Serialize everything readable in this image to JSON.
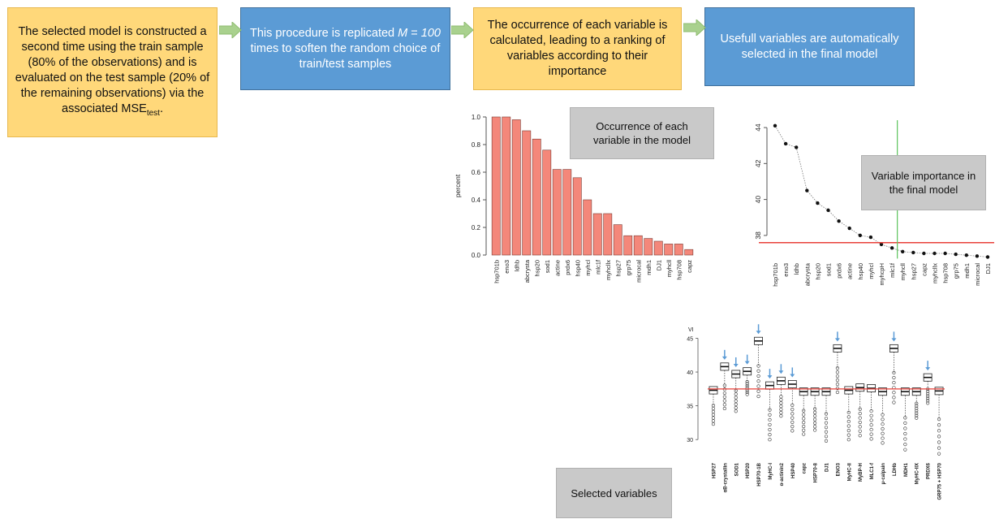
{
  "steps": [
    {
      "text": "The selected model is constructed a second time using the train sample (80% of the observations) and is evaluated on the test sample (20% of the remaining observations) via the associated",
      "mse": "MSE",
      "mse_sub": "test",
      "mse_end": "."
    },
    {
      "pre": "This procedure is replicated ",
      "m": "M",
      "eq": " = ",
      "n": "100",
      "post": "  times to soften the random choice of train/test samples"
    },
    {
      "text": "The occurrence of each variable is calculated, leading to a ranking of variables according to their importance"
    },
    {
      "text": "Usefull variables are automatically selected in the final model"
    }
  ],
  "colors": {
    "yellow": "#ffd87a",
    "blue": "#5b9bd5",
    "arrow": "#a9d18e",
    "bar": "#f4877a",
    "red_line": "#e8403a",
    "green_line": "#5cc45c",
    "blue_arrow": "#5b9bd5"
  },
  "labels": {
    "occurrence": "Occurrence of each variable in the model",
    "importance": "Variable importance in the final model",
    "selected": "Selected variables"
  },
  "chart_data": [
    {
      "type": "bar",
      "ylabel": "percent",
      "ylim": [
        0,
        1.0
      ],
      "yticks": [
        "0.0",
        "0.2",
        "0.4",
        "0.6",
        "0.8",
        "1.0"
      ],
      "categories": [
        "hsp701b",
        "eno3",
        "ldhb",
        "abcrysta",
        "hsp20",
        "sod1",
        "actine",
        "prdx6",
        "hsp40",
        "myhcl",
        "mlc1f",
        "myhcllx",
        "hsp27",
        "grp75",
        "microcal",
        "mdh1",
        "DJ1",
        "myhcll",
        "hsp708",
        "capz"
      ],
      "values": [
        1.0,
        1.0,
        0.98,
        0.9,
        0.84,
        0.76,
        0.62,
        0.62,
        0.56,
        0.4,
        0.3,
        0.3,
        0.22,
        0.14,
        0.14,
        0.12,
        0.1,
        0.08,
        0.08,
        0.04
      ]
    },
    {
      "type": "scatter",
      "ylim": [
        37,
        44.5
      ],
      "yticks": [
        "38",
        "40",
        "42",
        "44"
      ],
      "categories": [
        "hsp701b",
        "eno3",
        "ldhb",
        "abcrysta",
        "hsp20",
        "sod1",
        "prdx6",
        "actine",
        "hsp40",
        "myhcl",
        "myhcpH",
        "mlc1f",
        "myhcll",
        "hsp27",
        "capz",
        "myhcllx",
        "hsp708",
        "grp75",
        "mdh1",
        "microcal",
        "DJ1"
      ],
      "values": [
        44.1,
        43.1,
        42.9,
        40.5,
        39.8,
        39.4,
        38.8,
        38.4,
        38.0,
        37.9,
        37.5,
        37.3,
        37.1,
        37.05,
        37.0,
        37.0,
        37.0,
        36.95,
        36.9,
        36.85,
        36.8
      ],
      "threshold": 37.6
    },
    {
      "type": "box",
      "ylabel": "VI",
      "ylim": [
        27.5,
        46.5
      ],
      "yticks": [
        "30",
        "35",
        "40",
        "45"
      ],
      "categories": [
        "HSP27",
        "αB-crystallin",
        "SOD1",
        "HSP20",
        "HSP70-1B",
        "MyHC-I",
        "α-actinin2",
        "HSP40",
        "capz",
        "HSP70-8",
        "DJ1",
        "ENO3",
        "MyHC-II",
        "MyBP-H",
        "MLC1-f",
        "μ-calpain",
        "LDHb",
        "MDH1",
        "MyHC-IIX",
        "PRDX6",
        "GRP75 + HSP70"
      ],
      "medians": [
        37.3,
        40.8,
        39.7,
        40.1,
        44.6,
        38.0,
        38.7,
        38.2,
        37.1,
        37.1,
        37.1,
        43.5,
        37.3,
        37.7,
        37.6,
        37.1,
        43.5,
        37.1,
        37.1,
        39.2,
        37.2
      ],
      "minimums": [
        32.3,
        34.6,
        34.2,
        36.7,
        36.4,
        30.0,
        33.5,
        31.3,
        30.8,
        31.4,
        29.8,
        37.0,
        30.0,
        30.6,
        30.1,
        29.5,
        35.5,
        28.5,
        33.2,
        35.4,
        27.9
      ],
      "selected": [
        false,
        true,
        true,
        true,
        true,
        true,
        true,
        true,
        false,
        false,
        false,
        true,
        false,
        false,
        false,
        false,
        true,
        false,
        false,
        true,
        false
      ],
      "threshold": 37.5
    }
  ]
}
